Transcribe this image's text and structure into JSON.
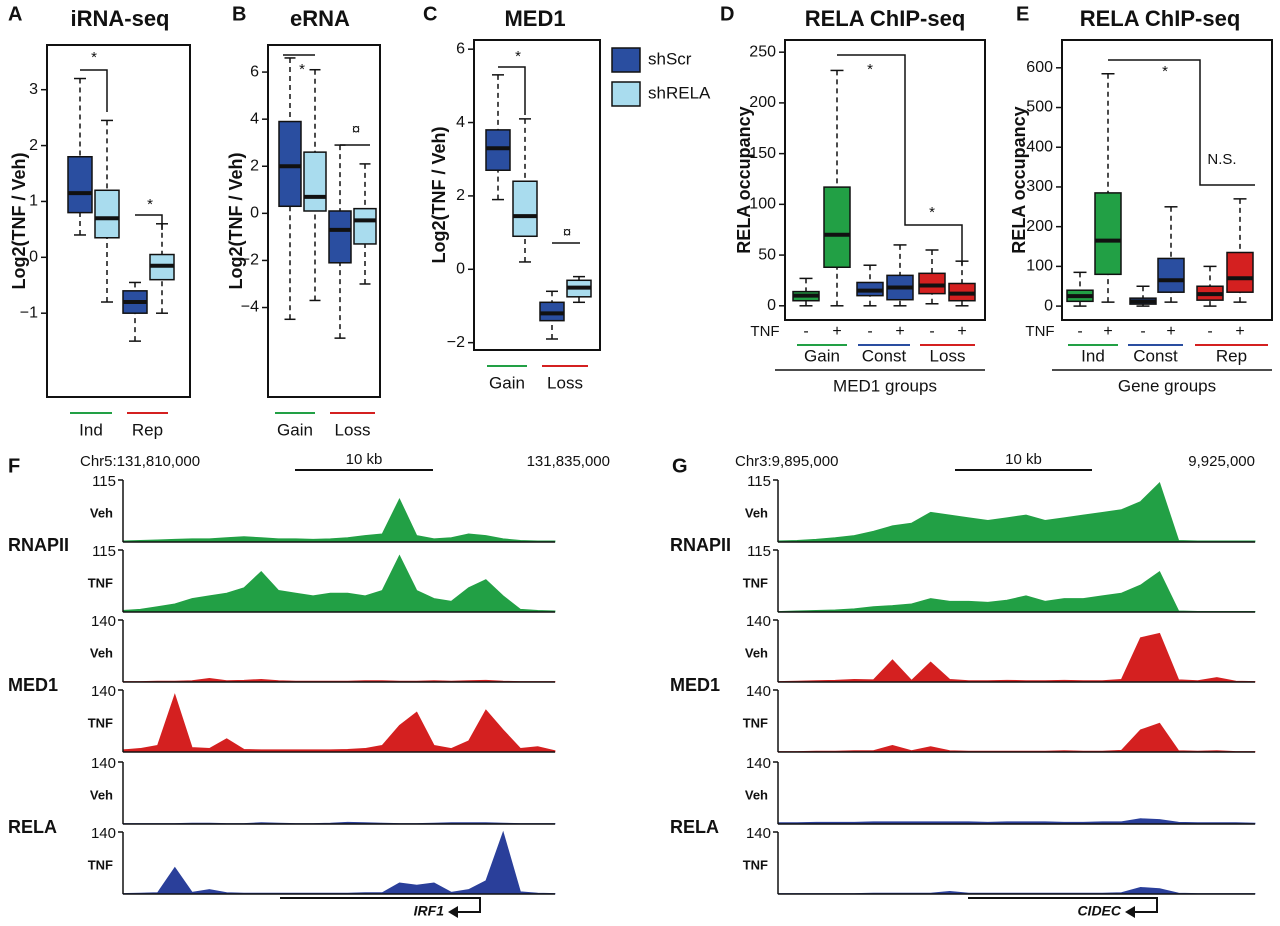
{
  "chart_data": [
    {
      "type": "box",
      "panel": "A",
      "title": "iRNA-seq",
      "ylabel": "Log2(TNF / Veh)",
      "ylim": [
        -2.5,
        3.8
      ],
      "yticks": [
        {
          "value": -1,
          "label": "−1"
        },
        0,
        1,
        2,
        3
      ],
      "categories": [
        "Ind",
        "Rep"
      ],
      "category_colors": [
        "#22a045",
        "#d42020"
      ],
      "series": [
        {
          "color": "#2a4ea0",
          "boxes": [
            {
              "low": 0.4,
              "q1": 0.8,
              "median": 1.15,
              "q3": 1.8,
              "high": 3.2
            },
            {
              "low": -1.5,
              "q1": -1.0,
              "median": -0.8,
              "q3": -0.6,
              "high": -0.45
            }
          ]
        },
        {
          "color": "#a9dcee",
          "boxes": [
            {
              "low": -0.8,
              "q1": 0.35,
              "median": 0.7,
              "q3": 1.2,
              "high": 2.45
            },
            {
              "low": -1.0,
              "q1": -0.4,
              "median": -0.15,
              "q3": 0.05,
              "high": 0.6
            }
          ]
        }
      ],
      "annotations": [
        "*",
        "*"
      ]
    },
    {
      "type": "box",
      "panel": "B",
      "title": "eRNA",
      "ylabel": "Log2(TNF / Veh)",
      "ylim": [
        -7.8,
        7.15
      ],
      "yticks": [
        {
          "value": -4,
          "label": "−4"
        },
        {
          "value": -2,
          "label": "−2"
        },
        0,
        2,
        4,
        6
      ],
      "categories": [
        "Gain",
        "Loss"
      ],
      "category_colors": [
        "#22a045",
        "#d42020"
      ],
      "series": [
        {
          "color": "#2a4ea0",
          "boxes": [
            {
              "low": -4.5,
              "q1": 0.3,
              "median": 2.0,
              "q3": 3.9,
              "high": 6.6
            },
            {
              "low": -5.3,
              "q1": -2.1,
              "median": -0.7,
              "q3": 0.1,
              "high": 2.9
            }
          ]
        },
        {
          "color": "#a9dcee",
          "boxes": [
            {
              "low": -3.7,
              "q1": 0.1,
              "median": 0.7,
              "q3": 2.6,
              "high": 6.1
            },
            {
              "low": -3.0,
              "q1": -1.3,
              "median": -0.3,
              "q3": 0.2,
              "high": 2.1
            }
          ]
        }
      ],
      "annotations": [
        "*",
        "¤"
      ]
    },
    {
      "type": "box",
      "panel": "C",
      "title": "MED1",
      "ylabel": "Log2(TNF / Veh)",
      "ylim": [
        -2.2,
        6.25
      ],
      "yticks": [
        {
          "value": -2,
          "label": "−2"
        },
        0,
        2,
        4,
        6
      ],
      "categories": [
        "Gain",
        "Loss"
      ],
      "category_colors": [
        "#22a045",
        "#d42020"
      ],
      "series": [
        {
          "name": "shScr",
          "color": "#2a4ea0",
          "boxes": [
            {
              "low": 1.9,
              "q1": 2.7,
              "median": 3.3,
              "q3": 3.8,
              "high": 5.3
            },
            {
              "low": -1.9,
              "q1": -1.4,
              "median": -1.2,
              "q3": -0.9,
              "high": -0.6
            }
          ]
        },
        {
          "name": "shRELA",
          "color": "#a9dcee",
          "boxes": [
            {
              "low": 0.2,
              "q1": 0.9,
              "median": 1.45,
              "q3": 2.4,
              "high": 4.1
            },
            {
              "low": -0.9,
              "q1": -0.75,
              "median": -0.5,
              "q3": -0.3,
              "high": -0.2
            }
          ]
        }
      ],
      "annotations": [
        "*",
        "¤"
      ]
    },
    {
      "type": "box",
      "panel": "D",
      "title": "RELA ChIP-seq",
      "ylabel": "RELA occupancy",
      "ylim": [
        -14,
        262
      ],
      "yticks": [
        0,
        50,
        100,
        150,
        200,
        250
      ],
      "condition_label": "TNF",
      "conditions": [
        "-",
        "+",
        "-",
        "+",
        "-",
        "+"
      ],
      "groups": [
        "Gain",
        "Const",
        "Loss"
      ],
      "group_colors": [
        "#22a045",
        "#2a4ea0",
        "#d42020"
      ],
      "xlabel": "MED1 groups",
      "boxes": [
        {
          "low": 0,
          "q1": 5,
          "median": 10,
          "q3": 14,
          "high": 27
        },
        {
          "low": 0,
          "q1": 38,
          "median": 70,
          "q3": 117,
          "high": 232
        },
        {
          "low": 0,
          "q1": 10,
          "median": 15,
          "q3": 23,
          "high": 40
        },
        {
          "low": 0,
          "q1": 6,
          "median": 18,
          "q3": 30,
          "high": 60
        },
        {
          "low": 2,
          "q1": 12,
          "median": 20,
          "q3": 32,
          "high": 55
        },
        {
          "low": 0,
          "q1": 5,
          "median": 12,
          "q3": 22,
          "high": 44
        }
      ],
      "annotations": [
        "*",
        "*"
      ]
    },
    {
      "type": "box",
      "panel": "E",
      "title": "RELA ChIP-seq",
      "ylabel": "RELA occupancy",
      "ylim": [
        -35,
        670
      ],
      "yticks": [
        0,
        100,
        200,
        300,
        400,
        500,
        600
      ],
      "condition_label": "TNF",
      "conditions": [
        "-",
        "+",
        "-",
        "+",
        "-",
        "+"
      ],
      "groups": [
        "Ind",
        "Const",
        "Rep"
      ],
      "group_colors": [
        "#22a045",
        "#2a4ea0",
        "#d42020"
      ],
      "xlabel": "Gene groups",
      "boxes": [
        {
          "low": 0,
          "q1": 12,
          "median": 25,
          "q3": 40,
          "high": 85
        },
        {
          "low": 10,
          "q1": 80,
          "median": 165,
          "q3": 285,
          "high": 585
        },
        {
          "low": 0,
          "q1": 5,
          "median": 12,
          "q3": 20,
          "high": 50
        },
        {
          "low": 10,
          "q1": 35,
          "median": 65,
          "q3": 120,
          "high": 250
        },
        {
          "low": 0,
          "q1": 15,
          "median": 30,
          "q3": 50,
          "high": 100
        },
        {
          "low": 10,
          "q1": 35,
          "median": 70,
          "q3": 135,
          "high": 270
        }
      ],
      "annotations": [
        "*",
        "N.S."
      ]
    },
    {
      "type": "track",
      "panel": "F",
      "start_label": "Chr5:131,810,000",
      "scale_label": "10 kb",
      "end_label": "131,835,000",
      "gene": "IRF1",
      "xlim": [
        131810000,
        131835000
      ],
      "x": [
        131810000,
        131811000,
        131812000,
        131813000,
        131814000,
        131815000,
        131816000,
        131817000,
        131818000,
        131819000,
        131820000,
        131821000,
        131822000,
        131823000,
        131824000,
        131825000,
        131826000,
        131827000,
        131828000,
        131829000,
        131830000,
        131831000,
        131832000,
        131833000,
        131834000,
        131835000
      ],
      "groups": [
        {
          "name": "RNAPII",
          "color": "#22a045",
          "tracks": [
            {
              "condition": "Veh",
              "ylim": [
                0,
                115
              ],
              "yticks": [
                115
              ],
              "values": [
                2,
                3,
                4,
                5,
                6,
                6,
                8,
                10,
                8,
                6,
                6,
                5,
                6,
                8,
                12,
                15,
                80,
                12,
                6,
                8,
                15,
                12,
                6,
                3,
                2,
                2
              ]
            },
            {
              "condition": "TNF",
              "ylim": [
                0,
                115
              ],
              "yticks": [
                115
              ],
              "values": [
                3,
                5,
                10,
                15,
                25,
                30,
                35,
                45,
                75,
                40,
                35,
                30,
                35,
                35,
                30,
                40,
                105,
                40,
                25,
                20,
                45,
                60,
                30,
                5,
                3,
                2
              ]
            }
          ]
        },
        {
          "name": "MED1",
          "color": "#d42020",
          "tracks": [
            {
              "condition": "Veh",
              "ylim": [
                0,
                140
              ],
              "yticks": [
                140
              ],
              "values": [
                1,
                1,
                2,
                2,
                3,
                8,
                3,
                4,
                6,
                3,
                2,
                2,
                2,
                2,
                3,
                3,
                2,
                2,
                3,
                2,
                3,
                4,
                2,
                1,
                1,
                1
              ]
            },
            {
              "condition": "TNF",
              "ylim": [
                0,
                140
              ],
              "yticks": [
                140
              ],
              "values": [
                5,
                8,
                15,
                130,
                10,
                8,
                30,
                6,
                5,
                5,
                5,
                5,
                5,
                6,
                8,
                15,
                60,
                90,
                15,
                8,
                25,
                95,
                50,
                8,
                12,
                3
              ]
            }
          ]
        },
        {
          "name": "RELA",
          "color": "#2a3f9a",
          "tracks": [
            {
              "condition": "Veh",
              "ylim": [
                0,
                140
              ],
              "yticks": [
                140
              ],
              "values": [
                1,
                1,
                1,
                1,
                2,
                2,
                1,
                1,
                3,
                2,
                1,
                1,
                2,
                4,
                3,
                2,
                1,
                1,
                2,
                3,
                3,
                3,
                2,
                1,
                1,
                1
              ]
            },
            {
              "condition": "TNF",
              "ylim": [
                0,
                140
              ],
              "yticks": [
                140
              ],
              "values": [
                1,
                2,
                3,
                60,
                4,
                10,
                3,
                2,
                2,
                2,
                2,
                2,
                2,
                2,
                3,
                3,
                25,
                20,
                25,
                4,
                10,
                30,
                140,
                5,
                2,
                1
              ]
            }
          ]
        }
      ]
    },
    {
      "type": "track",
      "panel": "G",
      "start_label": "Chr3:9,895,000",
      "scale_label": "10 kb",
      "end_label": "9,925,000",
      "gene": "CIDEC",
      "xlim": [
        9895000,
        9925000
      ],
      "x": [
        9895000,
        9896200,
        9897400,
        9898600,
        9899800,
        9901000,
        9902200,
        9903400,
        9904600,
        9905800,
        9907000,
        9908200,
        9909400,
        9910600,
        9911800,
        9913000,
        9914200,
        9915400,
        9916600,
        9917800,
        9919000,
        9920200,
        9921400,
        9922600,
        9923800,
        9925000
      ],
      "groups": [
        {
          "name": "RNAPII",
          "color": "#22a045",
          "tracks": [
            {
              "condition": "Veh",
              "ylim": [
                0,
                115
              ],
              "yticks": [
                115
              ],
              "values": [
                2,
                3,
                5,
                8,
                12,
                20,
                30,
                35,
                55,
                50,
                45,
                40,
                45,
                50,
                40,
                45,
                50,
                55,
                60,
                75,
                110,
                3,
                2,
                2,
                2,
                2
              ]
            },
            {
              "condition": "TNF",
              "ylim": [
                0,
                115
              ],
              "yticks": [
                115
              ],
              "values": [
                1,
                2,
                3,
                4,
                6,
                10,
                12,
                15,
                25,
                20,
                20,
                18,
                22,
                30,
                20,
                25,
                25,
                30,
                35,
                50,
                75,
                2,
                1,
                1,
                1,
                1
              ]
            }
          ]
        },
        {
          "name": "MED1",
          "color": "#d42020",
          "tracks": [
            {
              "condition": "Veh",
              "ylim": [
                0,
                140
              ],
              "yticks": [
                140
              ],
              "values": [
                1,
                2,
                3,
                4,
                6,
                5,
                50,
                4,
                45,
                6,
                3,
                3,
                4,
                3,
                3,
                4,
                3,
                3,
                6,
                100,
                110,
                5,
                3,
                10,
                2,
                1
              ]
            },
            {
              "condition": "TNF",
              "ylim": [
                0,
                140
              ],
              "yticks": [
                140
              ],
              "values": [
                1,
                1,
                2,
                2,
                3,
                3,
                15,
                3,
                12,
                3,
                2,
                2,
                2,
                2,
                2,
                3,
                2,
                2,
                4,
                50,
                65,
                3,
                2,
                3,
                1,
                1
              ]
            }
          ]
        },
        {
          "name": "RELA",
          "color": "#2a3f9a",
          "tracks": [
            {
              "condition": "Veh",
              "ylim": [
                0,
                140
              ],
              "yticks": [
                140
              ],
              "values": [
                3,
                3,
                4,
                4,
                4,
                5,
                5,
                5,
                5,
                5,
                5,
                4,
                5,
                5,
                5,
                4,
                4,
                5,
                5,
                12,
                10,
                4,
                3,
                3,
                3,
                2
              ]
            },
            {
              "condition": "TNF",
              "ylim": [
                0,
                140
              ],
              "yticks": [
                140
              ],
              "values": [
                1,
                1,
                1,
                1,
                1,
                2,
                2,
                2,
                2,
                6,
                2,
                2,
                2,
                2,
                2,
                2,
                2,
                2,
                3,
                15,
                12,
                2,
                1,
                1,
                1,
                1
              ]
            }
          ]
        }
      ]
    }
  ]
}
